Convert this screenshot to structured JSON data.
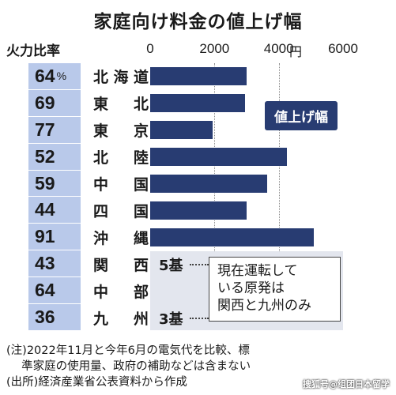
{
  "title": "家庭向け料金の値上げ幅",
  "pct_header": "火力比率",
  "unit": "円",
  "legend": "値上げ幅",
  "reactors": [
    {
      "count": "5基",
      "region_index": 7
    },
    {
      "count": "3基",
      "region_index": 9
    }
  ],
  "note_lines": [
    "現在運転して",
    "いる原発は",
    "関西と九州のみ"
  ],
  "footer": [
    "(注)2022年11月と今年6月の電気代を比較、標",
    "　 準家庭の使用量、政府の補助などは含まない",
    "(出所)経済産業省公表資料から作成"
  ],
  "watermark": "搜狐号@组团日本留学",
  "chart_data": {
    "type": "bar",
    "orientation": "horizontal",
    "title": "家庭向け料金の値上げ幅",
    "xlim": [
      0,
      6000
    ],
    "xticks": [
      "0",
      "2000",
      "4000",
      "6000"
    ],
    "xunit": "円",
    "categories": [
      "北海道",
      "東北",
      "東京",
      "北陸",
      "中国",
      "四国",
      "沖縄",
      "関西",
      "中部",
      "九州"
    ],
    "category_display": [
      [
        "北",
        "海",
        "道"
      ],
      [
        "東",
        "北"
      ],
      [
        "東",
        "京"
      ],
      [
        "北",
        "陸"
      ],
      [
        "中",
        "国"
      ],
      [
        "四",
        "国"
      ],
      [
        "沖",
        "縄"
      ],
      [
        "関",
        "西"
      ],
      [
        "中",
        "部"
      ],
      [
        "九",
        "州"
      ]
    ],
    "values": [
      3000,
      2950,
      1950,
      4250,
      3650,
      3000,
      5100,
      null,
      null,
      null
    ],
    "thermal_ratio": [
      "64",
      "69",
      "77",
      "52",
      "59",
      "44",
      "91",
      "43",
      "64",
      "36"
    ],
    "thermal_ratio_suffix_first": "%",
    "bar_color": "#283c72",
    "ratio_column_color": "#b9c9ea"
  }
}
